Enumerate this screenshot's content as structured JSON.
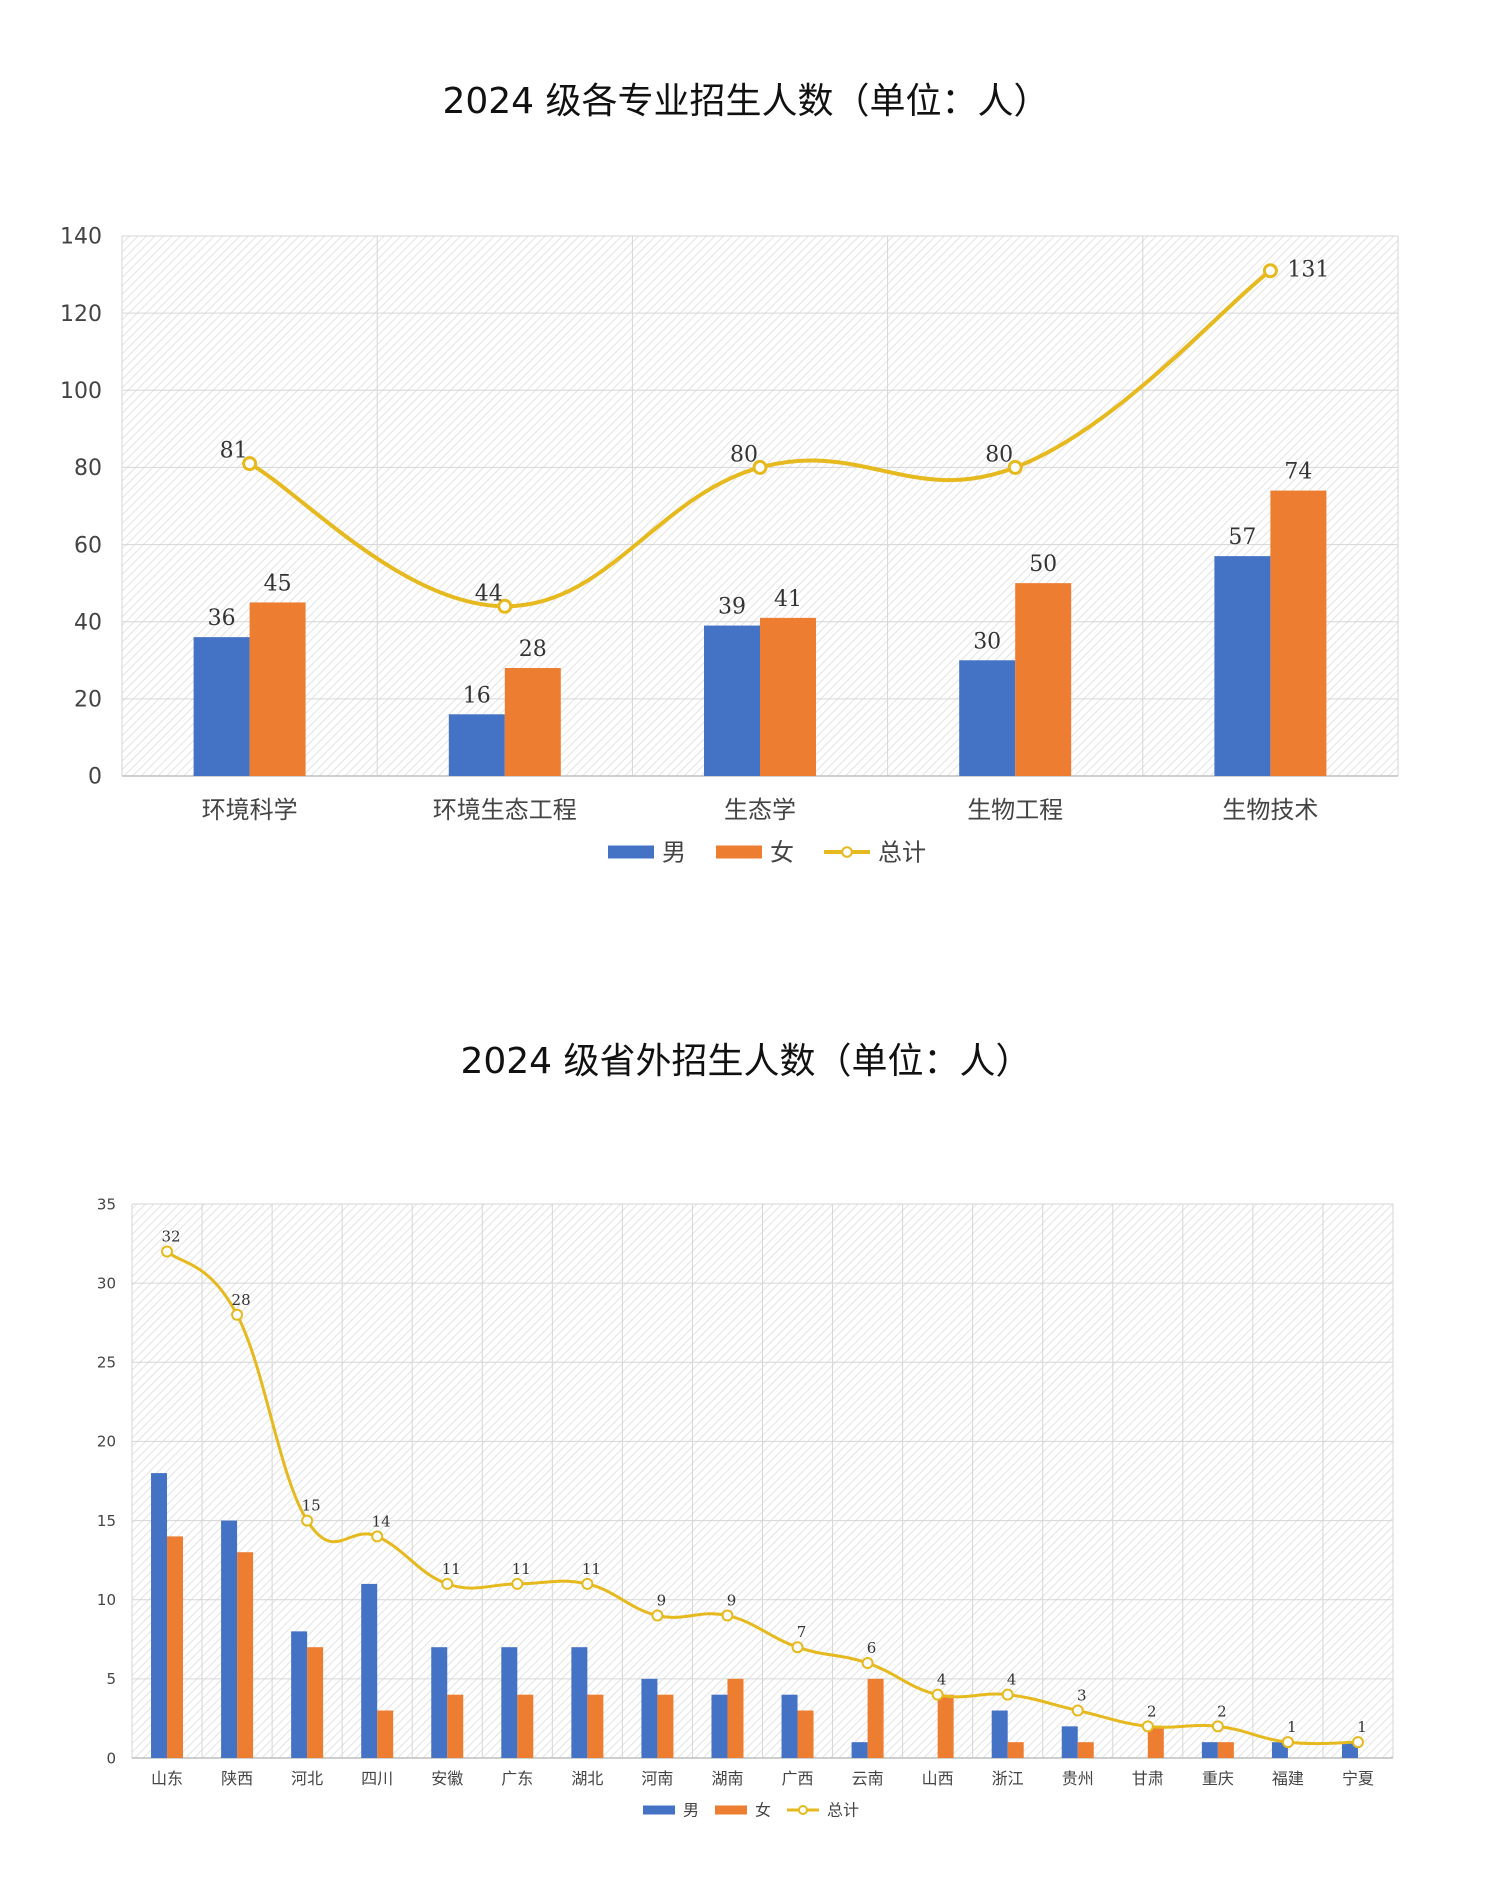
{
  "chart_data": [
    {
      "type": "bar",
      "title": "2024 级各专业招生人数（单位：人）",
      "categories": [
        "环境科学",
        "环境生态工程",
        "生态学",
        "生物工程",
        "生物技术"
      ],
      "series": [
        {
          "name": "男",
          "type": "bar",
          "values": [
            36,
            16,
            39,
            30,
            57
          ],
          "color": "#4472C4"
        },
        {
          "name": "女",
          "type": "bar",
          "values": [
            45,
            28,
            41,
            50,
            74
          ],
          "color": "#ED7D31"
        },
        {
          "name": "总计",
          "type": "line",
          "values": [
            81,
            44,
            80,
            80,
            131
          ],
          "color": "#E6B91E"
        }
      ],
      "ylim": [
        0,
        140
      ],
      "yticks": [
        0,
        20,
        40,
        60,
        80,
        100,
        120,
        140
      ],
      "grid": true,
      "legend": "bottom"
    },
    {
      "type": "bar",
      "title": "2024 级省外招生人数（单位：人）",
      "categories": [
        "山东",
        "陕西",
        "河北",
        "四川",
        "安徽",
        "广东",
        "湖北",
        "河南",
        "湖南",
        "广西",
        "云南",
        "山西",
        "浙江",
        "贵州",
        "甘肃",
        "重庆",
        "福建",
        "宁夏"
      ],
      "series": [
        {
          "name": "男",
          "type": "bar",
          "values": [
            18,
            15,
            8,
            11,
            7,
            7,
            7,
            5,
            4,
            4,
            1,
            0,
            3,
            2,
            0,
            1,
            1,
            1
          ],
          "color": "#4472C4"
        },
        {
          "name": "女",
          "type": "bar",
          "values": [
            14,
            13,
            7,
            3,
            4,
            4,
            4,
            4,
            5,
            3,
            5,
            4,
            1,
            1,
            2,
            1,
            0,
            0
          ],
          "color": "#ED7D31"
        },
        {
          "name": "总计",
          "type": "line",
          "values": [
            32,
            28,
            15,
            14,
            11,
            11,
            11,
            9,
            9,
            7,
            6,
            4,
            4,
            3,
            2,
            2,
            1,
            1
          ],
          "color": "#E6B91E"
        }
      ],
      "ylim": [
        0,
        35
      ],
      "yticks": [
        0,
        5,
        10,
        15,
        20,
        25,
        30,
        35
      ],
      "grid": true,
      "legend": "bottom"
    }
  ]
}
